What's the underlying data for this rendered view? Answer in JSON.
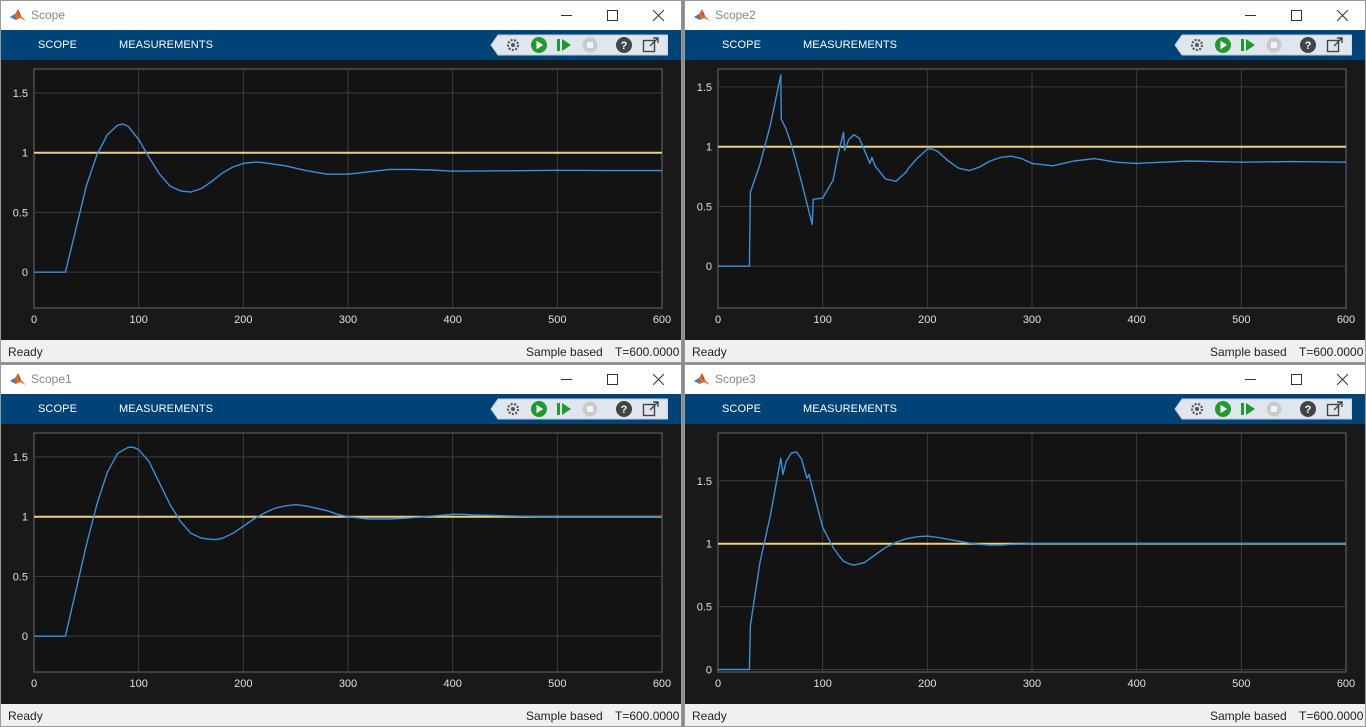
{
  "colors": {
    "toolstrip": "#004376",
    "plot_bg": "#131313",
    "signal": "#3b8fdb",
    "reference": "#ecd17a",
    "grid": "#3e3e3e",
    "tick_text": "#e0e0e0"
  },
  "tabs": {
    "scope": "SCOPE",
    "measurements": "MEASUREMENTS"
  },
  "toolstrip_icons": [
    "settings-icon",
    "run-icon",
    "step-forward-icon",
    "stop-icon",
    "help-icon",
    "undock-icon"
  ],
  "status": {
    "ready": "Ready",
    "mode": "Sample based",
    "time": "T=600.0000"
  },
  "windows": [
    {
      "title": "Scope",
      "chart_data": {
        "type": "line",
        "xlim": [
          0,
          600
        ],
        "ylim": [
          -0.3,
          1.7
        ],
        "xticks": [
          0,
          100,
          200,
          300,
          400,
          500,
          600
        ],
        "yticks": [
          0,
          0.5,
          1,
          1.5
        ],
        "grid": true,
        "series": [
          {
            "role": "reference",
            "x": [
              0,
              600
            ],
            "y": [
              1,
              1
            ]
          },
          {
            "role": "response",
            "x": [
              0,
              30,
              40,
              50,
              60,
              70,
              80,
              85,
              90,
              100,
              110,
              120,
              130,
              140,
              150,
              160,
              170,
              180,
              190,
              200,
              210,
              215,
              220,
              240,
              260,
              280,
              300,
              320,
              340,
              360,
              380,
              400,
              450,
              500,
              550,
              600
            ],
            "y": [
              0,
              0,
              0.36,
              0.72,
              0.98,
              1.15,
              1.23,
              1.24,
              1.22,
              1.11,
              0.96,
              0.82,
              0.72,
              0.68,
              0.67,
              0.7,
              0.76,
              0.83,
              0.88,
              0.91,
              0.92,
              0.92,
              0.915,
              0.89,
              0.85,
              0.82,
              0.82,
              0.84,
              0.86,
              0.86,
              0.855,
              0.845,
              0.848,
              0.852,
              0.85,
              0.85
            ]
          }
        ]
      }
    },
    {
      "title": "Scope2",
      "chart_data": {
        "type": "line",
        "xlim": [
          0,
          600
        ],
        "ylim": [
          -0.35,
          1.65
        ],
        "xticks": [
          0,
          100,
          200,
          300,
          400,
          500,
          600
        ],
        "yticks": [
          0,
          0.5,
          1,
          1.5
        ],
        "grid": true,
        "series": [
          {
            "role": "reference",
            "x": [
              0,
              600
            ],
            "y": [
              1,
              1
            ]
          },
          {
            "role": "response",
            "x": [
              0,
              30,
              31,
              40,
              50,
              60,
              60.5,
              65,
              70,
              80,
              90,
              91,
              100,
              110,
              115,
              120,
              121,
              125,
              130,
              135,
              140,
              145,
              147,
              150,
              160,
              170,
              175,
              180,
              182,
              190,
              200,
              205,
              210,
              220,
              230,
              240,
              250,
              260,
              270,
              280,
              290,
              300,
              320,
              340,
              360,
              380,
              400,
              450,
              500,
              550,
              600
            ],
            "y": [
              0,
              0,
              0.62,
              0.85,
              1.18,
              1.6,
              1.23,
              1.15,
              1.02,
              0.7,
              0.35,
              0.56,
              0.57,
              0.72,
              0.95,
              1.12,
              0.97,
              1.06,
              1.1,
              1.07,
              0.97,
              0.86,
              0.91,
              0.84,
              0.73,
              0.71,
              0.75,
              0.79,
              0.82,
              0.9,
              0.98,
              0.98,
              0.96,
              0.88,
              0.82,
              0.8,
              0.83,
              0.88,
              0.91,
              0.92,
              0.9,
              0.86,
              0.84,
              0.88,
              0.9,
              0.87,
              0.86,
              0.88,
              0.87,
              0.875,
              0.87
            ]
          }
        ]
      }
    },
    {
      "title": "Scope1",
      "chart_data": {
        "type": "line",
        "xlim": [
          0,
          600
        ],
        "ylim": [
          -0.3,
          1.7
        ],
        "xticks": [
          0,
          100,
          200,
          300,
          400,
          500,
          600
        ],
        "yticks": [
          0,
          0.5,
          1,
          1.5
        ],
        "grid": true,
        "series": [
          {
            "role": "reference",
            "x": [
              0,
              600
            ],
            "y": [
              1,
              1
            ]
          },
          {
            "role": "response",
            "x": [
              0,
              30,
              40,
              50,
              60,
              70,
              80,
              90,
              95,
              100,
              110,
              120,
              130,
              140,
              150,
              160,
              170,
              175,
              180,
              190,
              200,
              210,
              220,
              230,
              240,
              250,
              260,
              270,
              280,
              290,
              300,
              320,
              340,
              360,
              380,
              400,
              410,
              420,
              440,
              460,
              480,
              500,
              550,
              600
            ],
            "y": [
              0,
              0,
              0.38,
              0.76,
              1.1,
              1.37,
              1.53,
              1.58,
              1.58,
              1.56,
              1.46,
              1.28,
              1.1,
              0.96,
              0.86,
              0.82,
              0.81,
              0.81,
              0.82,
              0.86,
              0.92,
              0.98,
              1.03,
              1.07,
              1.09,
              1.1,
              1.09,
              1.07,
              1.05,
              1.02,
              1.0,
              0.98,
              0.98,
              0.99,
              1.005,
              1.02,
              1.02,
              1.015,
              1.01,
              1.005,
              1.0,
              1.0,
              1.0,
              1.0
            ]
          }
        ]
      }
    },
    {
      "title": "Scope3",
      "chart_data": {
        "type": "line",
        "xlim": [
          0,
          600
        ],
        "ylim": [
          -0.02,
          1.88
        ],
        "xticks": [
          0,
          100,
          200,
          300,
          400,
          500,
          600
        ],
        "yticks": [
          0,
          0.5,
          1,
          1.5
        ],
        "grid": true,
        "series": [
          {
            "role": "reference",
            "x": [
              0,
              600
            ],
            "y": [
              1,
              1
            ]
          },
          {
            "role": "response",
            "x": [
              0,
              30,
              31,
              40,
              50,
              60,
              62,
              65,
              70,
              75,
              80,
              85,
              87,
              90,
              95,
              100,
              110,
              115,
              120,
              125,
              130,
              140,
              150,
              160,
              170,
              180,
              190,
              200,
              210,
              220,
              230,
              240,
              250,
              260,
              270,
              280,
              300,
              350,
              400,
              500,
              600
            ],
            "y": [
              0,
              0,
              0.35,
              0.85,
              1.22,
              1.68,
              1.55,
              1.65,
              1.72,
              1.73,
              1.67,
              1.52,
              1.55,
              1.45,
              1.29,
              1.13,
              0.97,
              0.91,
              0.86,
              0.84,
              0.83,
              0.85,
              0.91,
              0.97,
              1.01,
              1.04,
              1.055,
              1.06,
              1.05,
              1.035,
              1.02,
              1.005,
              0.995,
              0.99,
              0.99,
              0.995,
              1.0,
              1.0,
              1.0,
              1.0,
              1.0
            ]
          }
        ]
      }
    }
  ]
}
